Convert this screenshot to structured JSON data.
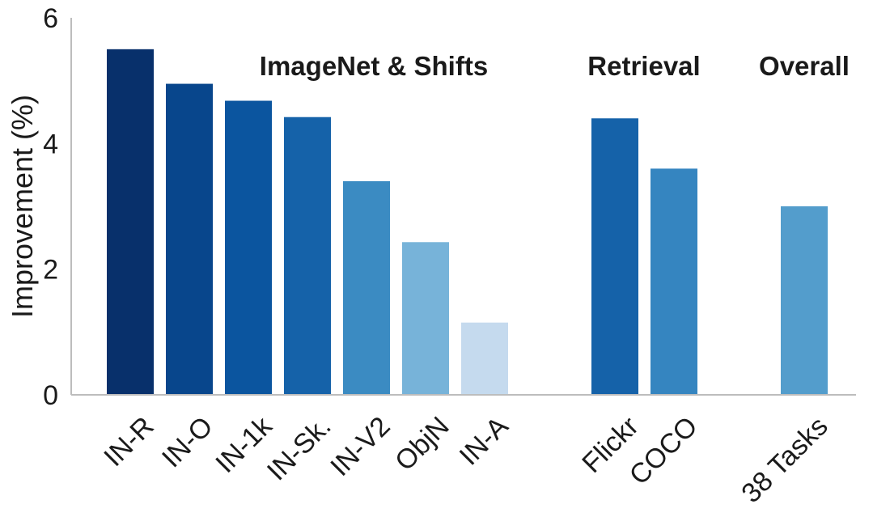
{
  "chart_data": {
    "type": "bar",
    "title": "",
    "xlabel": "",
    "ylabel": "Improvement (%)",
    "ylim": [
      0,
      6
    ],
    "yticks": [
      0,
      2,
      4,
      6
    ],
    "grid": false,
    "categories": [
      "IN-R",
      "IN-O",
      "IN-1k",
      "IN-Sk.",
      "IN-V2",
      "ObjN",
      "IN-A",
      "Flickr",
      "COCO",
      "38 Tasks"
    ],
    "values": [
      5.5,
      4.95,
      4.68,
      4.42,
      3.4,
      2.43,
      1.15,
      4.4,
      3.6,
      3.0
    ],
    "colors": [
      "#08306b",
      "#08468c",
      "#0b559f",
      "#1562a9",
      "#3b8bc2",
      "#77b3d9",
      "#c5daee",
      "#1562a9",
      "#3585c0",
      "#539dcc"
    ],
    "groups": [
      {
        "name": "ImageNet & Shifts",
        "categories": [
          "IN-R",
          "IN-O",
          "IN-1k",
          "IN-Sk.",
          "IN-V2",
          "ObjN",
          "IN-A"
        ]
      },
      {
        "name": "Retrieval",
        "categories": [
          "Flickr",
          "COCO"
        ]
      },
      {
        "name": "Overall",
        "categories": [
          "38 Tasks"
        ]
      }
    ]
  }
}
